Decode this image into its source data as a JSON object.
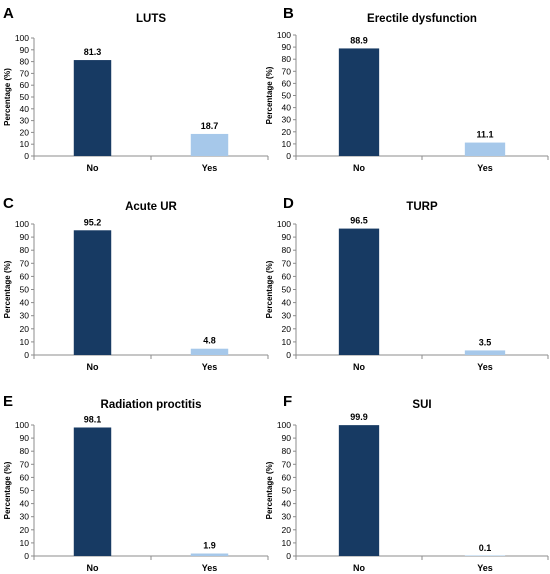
{
  "chart_data": [
    {
      "type": "bar",
      "panel": "A",
      "title": "LUTS",
      "categories": [
        "No",
        "Yes"
      ],
      "values": [
        81.3,
        18.7
      ],
      "value_labels": [
        "81.3",
        "18.7"
      ],
      "ylabel": "Percentage (%)",
      "ylim": [
        0,
        100
      ],
      "yticks": [
        "0",
        "10",
        "20",
        "30",
        "40",
        "50",
        "60",
        "70",
        "80",
        "90",
        "100"
      ],
      "grid": false,
      "bar_colors": [
        "#173a63",
        "#a6c8ea"
      ]
    },
    {
      "type": "bar",
      "panel": "B",
      "title": "Erectile dysfunction",
      "categories": [
        "No",
        "Yes"
      ],
      "values": [
        88.9,
        11.1
      ],
      "value_labels": [
        "88.9",
        "11.1"
      ],
      "ylabel": "Percentage (%)",
      "ylim": [
        0,
        100
      ],
      "yticks": [
        "0",
        "10",
        "20",
        "30",
        "40",
        "50",
        "60",
        "70",
        "80",
        "90",
        "100"
      ],
      "grid": false,
      "bar_colors": [
        "#173a63",
        "#a6c8ea"
      ]
    },
    {
      "type": "bar",
      "panel": "C",
      "title": "Acute UR",
      "categories": [
        "No",
        "Yes"
      ],
      "values": [
        95.2,
        4.8
      ],
      "value_labels": [
        "95.2",
        "4.8"
      ],
      "ylabel": "Percentage (%)",
      "ylim": [
        0,
        100
      ],
      "yticks": [
        "0",
        "10",
        "20",
        "30",
        "40",
        "50",
        "60",
        "70",
        "80",
        "90",
        "100"
      ],
      "grid": false,
      "bar_colors": [
        "#173a63",
        "#a6c8ea"
      ]
    },
    {
      "type": "bar",
      "panel": "D",
      "title": "TURP",
      "categories": [
        "No",
        "Yes"
      ],
      "values": [
        96.5,
        3.5
      ],
      "value_labels": [
        "96.5",
        "3.5"
      ],
      "ylabel": "Percentage (%)",
      "ylim": [
        0,
        100
      ],
      "yticks": [
        "0",
        "10",
        "20",
        "30",
        "40",
        "50",
        "60",
        "70",
        "80",
        "90",
        "100"
      ],
      "grid": false,
      "bar_colors": [
        "#173a63",
        "#a6c8ea"
      ]
    },
    {
      "type": "bar",
      "panel": "E",
      "title": "Radiation proctitis",
      "categories": [
        "No",
        "Yes"
      ],
      "values": [
        98.1,
        1.9
      ],
      "value_labels": [
        "98.1",
        "1.9"
      ],
      "ylabel": "Percentage (%)",
      "ylim": [
        0,
        100
      ],
      "yticks": [
        "0",
        "10",
        "20",
        "30",
        "40",
        "50",
        "60",
        "70",
        "80",
        "90",
        "100"
      ],
      "grid": false,
      "bar_colors": [
        "#173a63",
        "#a6c8ea"
      ]
    },
    {
      "type": "bar",
      "panel": "F",
      "title": "SUI",
      "categories": [
        "No",
        "Yes"
      ],
      "values": [
        99.9,
        0.1
      ],
      "value_labels": [
        "99.9",
        "0.1"
      ],
      "ylabel": "Percentage (%)",
      "ylim": [
        0,
        100
      ],
      "yticks": [
        "0",
        "10",
        "20",
        "30",
        "40",
        "50",
        "60",
        "70",
        "80",
        "90",
        "100"
      ],
      "grid": false,
      "bar_colors": [
        "#173a63",
        "#a6c8ea"
      ]
    }
  ]
}
